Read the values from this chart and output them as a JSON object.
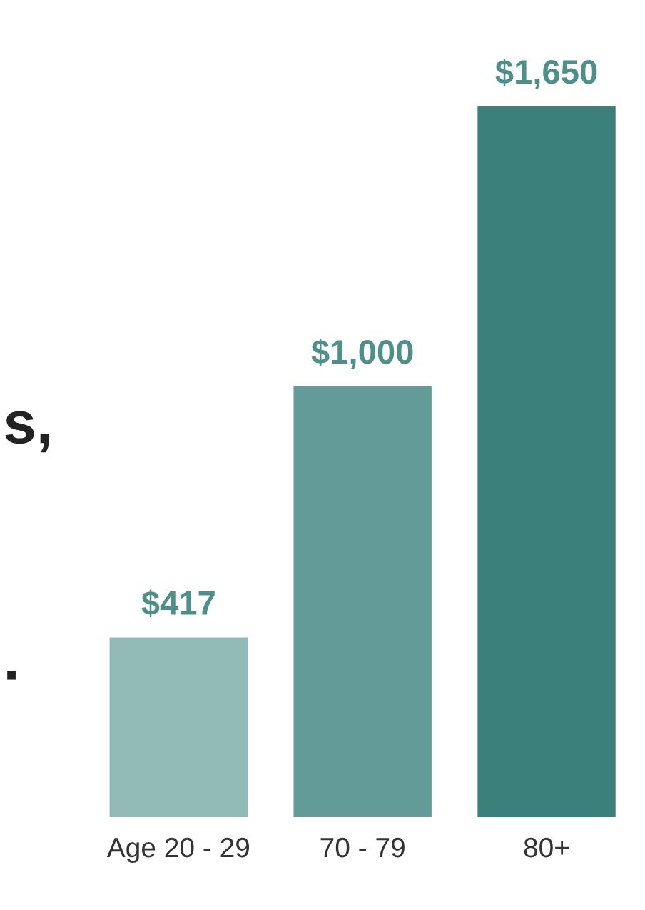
{
  "chart_data": {
    "type": "bar",
    "categories": [
      "Age 20 - 29",
      "70 - 79",
      "80+"
    ],
    "values": [
      417,
      1000,
      1650
    ],
    "colors": [
      "#93bbb6",
      "#629b97",
      "#3c807b"
    ],
    "value_labels": [
      "$417",
      "$1,000",
      "$1,650"
    ],
    "annotations": [
      "s,",
      "."
    ],
    "grid": false
  }
}
